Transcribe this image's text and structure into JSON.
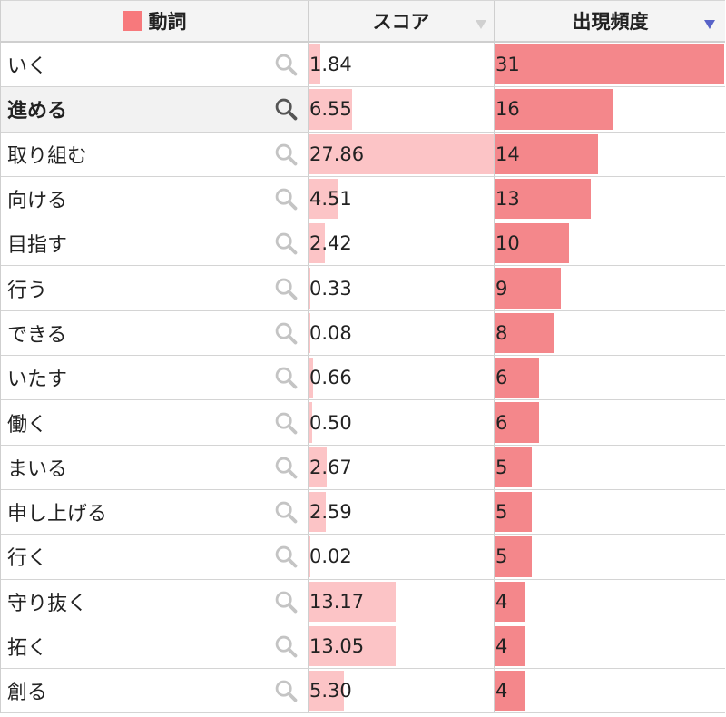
{
  "colors": {
    "verb_swatch": "#f7797c",
    "score_bar": "#fcc4c6",
    "freq_bar": "#f4878b",
    "sort_active": "#5863c8"
  },
  "header": {
    "word_col": "動詞",
    "score_col": "スコア",
    "freq_col": "出現頻度"
  },
  "score_max": 27.86,
  "freq_max": 31,
  "rows": [
    {
      "word": "いく",
      "score": "1.84",
      "freq": "31"
    },
    {
      "word": "進める",
      "score": "6.55",
      "freq": "16"
    },
    {
      "word": "取り組む",
      "score": "27.86",
      "freq": "14"
    },
    {
      "word": "向ける",
      "score": "4.51",
      "freq": "13"
    },
    {
      "word": "目指す",
      "score": "2.42",
      "freq": "10"
    },
    {
      "word": "行う",
      "score": "0.33",
      "freq": "9"
    },
    {
      "word": "できる",
      "score": "0.08",
      "freq": "8"
    },
    {
      "word": "いたす",
      "score": "0.66",
      "freq": "6"
    },
    {
      "word": "働く",
      "score": "0.50",
      "freq": "6"
    },
    {
      "word": "まいる",
      "score": "2.67",
      "freq": "5"
    },
    {
      "word": "申し上げる",
      "score": "2.59",
      "freq": "5"
    },
    {
      "word": "行く",
      "score": "0.02",
      "freq": "5"
    },
    {
      "word": "守り抜く",
      "score": "13.17",
      "freq": "4"
    },
    {
      "word": "拓く",
      "score": "13.05",
      "freq": "4"
    },
    {
      "word": "創る",
      "score": "5.30",
      "freq": "4"
    }
  ]
}
